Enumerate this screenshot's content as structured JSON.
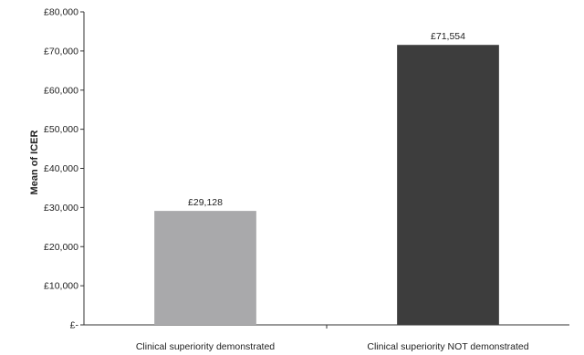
{
  "chart_data": {
    "type": "bar",
    "title": "",
    "xlabel": "",
    "ylabel": "Mean of ICER",
    "categories": [
      "Clinical superiority demonstrated",
      "Clinical superiority NOT demonstrated"
    ],
    "values": [
      29128,
      71554
    ],
    "data_labels": [
      "£29,128",
      "£71,554"
    ],
    "ylim": [
      0,
      80000
    ],
    "yticks": [
      0,
      10000,
      20000,
      30000,
      40000,
      50000,
      60000,
      70000,
      80000
    ],
    "ytick_labels": [
      "£-",
      "£10,000",
      "£20,000",
      "£30,000",
      "£40,000",
      "£50,000",
      "£60,000",
      "£70,000",
      "£80,000"
    ],
    "bar_colors": [
      "#a9a9ab",
      "#3d3d3d"
    ],
    "grid": false,
    "legend": "none"
  }
}
